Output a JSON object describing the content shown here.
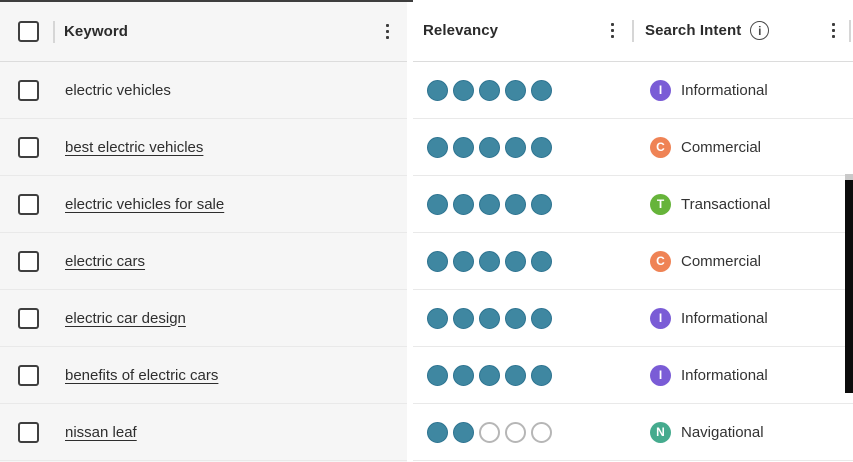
{
  "header": {
    "keyword_col": "Keyword",
    "relevancy_col": "Relevancy",
    "search_intent_col": "Search Intent",
    "info_icon_glyph": "i",
    "select_all_checked": false
  },
  "relevancy_max": 5,
  "intent_types": {
    "Informational": {
      "letter": "I",
      "color": "#7a5cd6"
    },
    "Commercial": {
      "letter": "C",
      "color": "#ef8355"
    },
    "Transactional": {
      "letter": "T",
      "color": "#66b43a"
    },
    "Navigational": {
      "letter": "N",
      "color": "#45ab8e"
    }
  },
  "colors": {
    "dot_filled": "#3f87a1",
    "dot_filled_border": "#2d7390",
    "dot_empty_border": "#b6b6b6"
  },
  "rows": [
    {
      "keyword": "electric vehicles",
      "is_link": false,
      "relevancy": 5,
      "intent": "Informational",
      "checked": false
    },
    {
      "keyword": "best electric vehicles",
      "is_link": true,
      "relevancy": 5,
      "intent": "Commercial",
      "checked": false
    },
    {
      "keyword": "electric vehicles for sale",
      "is_link": true,
      "relevancy": 5,
      "intent": "Transactional",
      "checked": false
    },
    {
      "keyword": "electric cars",
      "is_link": true,
      "relevancy": 5,
      "intent": "Commercial",
      "checked": false
    },
    {
      "keyword": "electric car design",
      "is_link": true,
      "relevancy": 5,
      "intent": "Informational",
      "checked": false
    },
    {
      "keyword": "benefits of electric cars",
      "is_link": true,
      "relevancy": 5,
      "intent": "Informational",
      "checked": false
    },
    {
      "keyword": "nissan leaf",
      "is_link": true,
      "relevancy": 2,
      "intent": "Navigational",
      "checked": false
    }
  ]
}
